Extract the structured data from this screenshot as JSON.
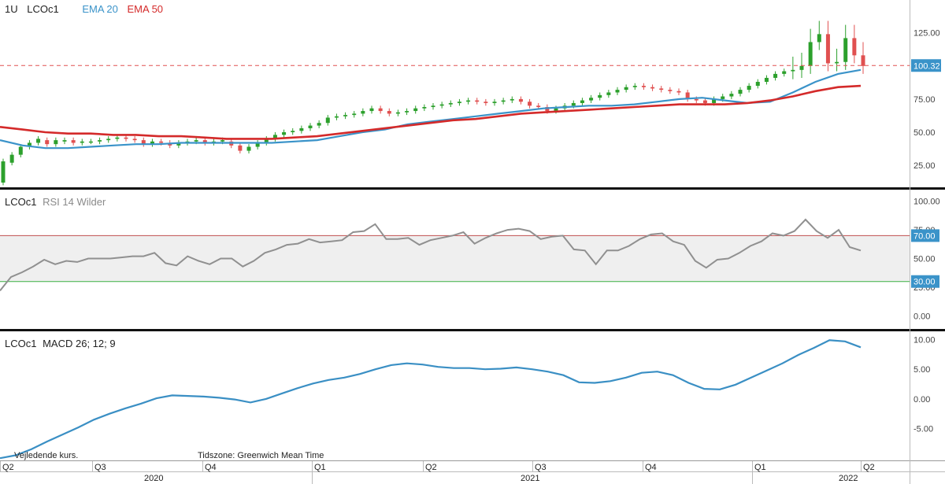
{
  "header": {
    "interval": "1U",
    "symbol": "LCOc1",
    "ema20_label": "EMA 20",
    "ema50_label": "EMA 50"
  },
  "rsi_panel": {
    "symbol": "LCOc1",
    "indicator": "RSI 14 Wilder"
  },
  "macd_panel": {
    "symbol": "LCOc1",
    "indicator": "MACD 26; 12; 9"
  },
  "footer": {
    "note": "Vejledende kurs.",
    "timezone": "Tidszone: Greenwich Mean Time"
  },
  "colors": {
    "up": "#2ca02c",
    "down": "#e05050",
    "ema20": "#3a93c9",
    "ema50": "#d42a2a",
    "rsi": "#909090",
    "macd": "#3a8fc4",
    "overbought": "#c05050",
    "oversold": "#3cb043",
    "rsi_band": "#efefef",
    "price_badge": "#3a93c9"
  },
  "chart_data": [
    {
      "type": "candlestick",
      "title": "LCOc1",
      "x_labels": [
        "Q2",
        "Q3",
        "Q4",
        "Q1",
        "Q2",
        "Q3",
        "Q4",
        "Q1",
        "Q2"
      ],
      "year_labels": [
        "2020",
        "2021",
        "2022"
      ],
      "yticks": [
        25,
        50,
        75,
        100,
        125
      ],
      "ylim": [
        12,
        145
      ],
      "last_price": 100.32,
      "ema20": [
        44,
        40,
        38,
        38,
        39,
        40,
        41,
        41,
        42,
        42,
        42,
        42,
        42,
        43,
        44,
        47,
        50,
        52,
        56,
        58,
        60,
        62,
        64,
        66,
        68,
        69,
        70,
        70,
        71,
        73,
        75,
        76,
        74,
        72,
        73,
        80,
        88,
        94,
        97
      ],
      "ema50": [
        54,
        52,
        50,
        49,
        49,
        48,
        48,
        47,
        47,
        46,
        45,
        45,
        45,
        46,
        47,
        49,
        51,
        53,
        55,
        57,
        59,
        60,
        62,
        64,
        65,
        66,
        67,
        68,
        69,
        70,
        71,
        71,
        71,
        72,
        74,
        77,
        81,
        84,
        85
      ],
      "candles": [
        [
          12,
          28
        ],
        [
          27,
          33
        ],
        [
          33,
          39
        ],
        [
          39,
          42
        ],
        [
          42,
          45
        ],
        [
          44,
          41
        ],
        [
          41,
          44
        ],
        [
          43,
          44
        ],
        [
          44,
          42
        ],
        [
          42,
          43
        ],
        [
          43,
          43
        ],
        [
          43,
          44
        ],
        [
          44,
          45
        ],
        [
          45,
          46
        ],
        [
          46,
          45
        ],
        [
          45,
          44
        ],
        [
          44,
          41
        ],
        [
          41,
          43
        ],
        [
          43,
          42
        ],
        [
          42,
          40
        ],
        [
          40,
          42
        ],
        [
          42,
          43
        ],
        [
          43,
          44
        ],
        [
          44,
          42
        ],
        [
          42,
          43
        ],
        [
          43,
          44
        ],
        [
          43,
          40
        ],
        [
          40,
          36
        ],
        [
          36,
          39
        ],
        [
          39,
          42
        ],
        [
          42,
          45
        ],
        [
          45,
          48
        ],
        [
          48,
          50
        ],
        [
          50,
          51
        ],
        [
          51,
          53
        ],
        [
          53,
          55
        ],
        [
          55,
          57
        ],
        [
          57,
          61
        ],
        [
          61,
          62
        ],
        [
          62,
          63
        ],
        [
          63,
          64
        ],
        [
          64,
          66
        ],
        [
          66,
          68
        ],
        [
          68,
          66
        ],
        [
          66,
          64
        ],
        [
          64,
          65
        ],
        [
          65,
          66
        ],
        [
          66,
          68
        ],
        [
          68,
          69
        ],
        [
          69,
          70
        ],
        [
          70,
          71
        ],
        [
          71,
          72
        ],
        [
          72,
          73
        ],
        [
          73,
          74
        ],
        [
          74,
          73
        ],
        [
          73,
          72
        ],
        [
          72,
          73
        ],
        [
          73,
          74
        ],
        [
          74,
          75
        ],
        [
          75,
          73
        ],
        [
          73,
          70
        ],
        [
          70,
          69
        ],
        [
          69,
          66
        ],
        [
          66,
          68
        ],
        [
          68,
          70
        ],
        [
          70,
          72
        ],
        [
          72,
          74
        ],
        [
          74,
          76
        ],
        [
          76,
          78
        ],
        [
          78,
          80
        ],
        [
          80,
          82
        ],
        [
          82,
          84
        ],
        [
          84,
          85
        ],
        [
          85,
          84
        ],
        [
          84,
          83
        ],
        [
          83,
          82
        ],
        [
          82,
          81
        ],
        [
          81,
          80
        ],
        [
          80,
          75
        ],
        [
          75,
          74
        ],
        [
          74,
          72
        ],
        [
          72,
          75
        ],
        [
          75,
          77
        ],
        [
          77,
          79
        ],
        [
          79,
          82
        ],
        [
          82,
          85
        ],
        [
          85,
          88
        ],
        [
          88,
          91
        ],
        [
          91,
          94
        ],
        [
          94,
          96
        ],
        [
          96,
          97
        ],
        [
          97,
          100
        ],
        [
          100,
          118
        ],
        [
          118,
          124
        ],
        [
          124,
          102
        ],
        [
          102,
          103
        ],
        [
          103,
          121
        ],
        [
          121,
          108
        ],
        [
          108,
          100
        ]
      ]
    },
    {
      "type": "line",
      "title": "RSI 14 Wilder",
      "yticks": [
        0,
        25,
        50,
        75,
        100
      ],
      "ylim": [
        -10,
        108
      ],
      "levels": [
        70,
        30
      ],
      "values": [
        22,
        34,
        38,
        43,
        49,
        45,
        48,
        47,
        50,
        50,
        50,
        51,
        52,
        52,
        55,
        46,
        44,
        52,
        48,
        45,
        50,
        50,
        43,
        48,
        55,
        58,
        62,
        63,
        67,
        64,
        65,
        66,
        73,
        74,
        80,
        67,
        67,
        68,
        62,
        66,
        68,
        70,
        73,
        63,
        68,
        72,
        75,
        76,
        74,
        67,
        69,
        70,
        58,
        57,
        45,
        57,
        57,
        61,
        67,
        71,
        72,
        65,
        62,
        48,
        42,
        49,
        50,
        55,
        61,
        65,
        72,
        70,
        74,
        84,
        74,
        68,
        75,
        60,
        57
      ]
    },
    {
      "type": "line",
      "title": "MACD 26; 12; 9",
      "yticks": [
        -5,
        0,
        5,
        10
      ],
      "ylim": [
        -10.5,
        11
      ],
      "values": [
        -10,
        -9.5,
        -8.5,
        -7.2,
        -6.0,
        -4.8,
        -3.5,
        -2.5,
        -1.6,
        -0.8,
        0.1,
        0.6,
        0.5,
        0.4,
        0.2,
        -0.1,
        -0.6,
        0.0,
        0.9,
        1.8,
        2.6,
        3.2,
        3.6,
        4.2,
        5.0,
        5.7,
        6.0,
        5.8,
        5.4,
        5.2,
        5.2,
        5.0,
        5.1,
        5.3,
        5.0,
        4.6,
        4.0,
        2.8,
        2.7,
        3.0,
        3.6,
        4.4,
        4.6,
        4.0,
        2.7,
        1.7,
        1.6,
        2.4,
        3.6,
        4.8,
        6.0,
        7.4,
        8.6,
        9.9,
        9.7,
        8.7
      ]
    }
  ]
}
